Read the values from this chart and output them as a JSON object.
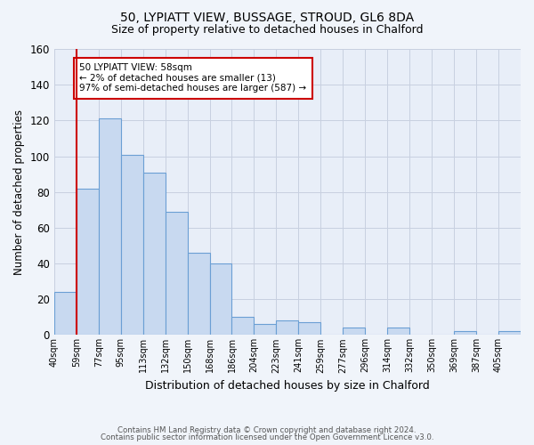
{
  "title1": "50, LYPIATT VIEW, BUSSAGE, STROUD, GL6 8DA",
  "title2": "Size of property relative to detached houses in Chalford",
  "xlabel": "Distribution of detached houses by size in Chalford",
  "ylabel": "Number of detached properties",
  "bin_labels": [
    "40sqm",
    "59sqm",
    "77sqm",
    "95sqm",
    "113sqm",
    "132sqm",
    "150sqm",
    "168sqm",
    "186sqm",
    "204sqm",
    "223sqm",
    "241sqm",
    "259sqm",
    "277sqm",
    "296sqm",
    "314sqm",
    "332sqm",
    "350sqm",
    "369sqm",
    "387sqm",
    "405sqm"
  ],
  "bar_values": [
    24,
    82,
    121,
    101,
    91,
    69,
    46,
    40,
    10,
    6,
    8,
    7,
    0,
    4,
    0,
    4,
    0,
    0,
    2,
    0,
    2
  ],
  "bar_color": "#c8d9f0",
  "bar_edge_color": "#6b9fd4",
  "vline_x": 1,
  "vline_color": "#cc0000",
  "annotation_text": "50 LYPIATT VIEW: 58sqm\n← 2% of detached houses are smaller (13)\n97% of semi-detached houses are larger (587) →",
  "annotation_box_color": "#ffffff",
  "annotation_box_edge": "#cc0000",
  "ylim": [
    0,
    160
  ],
  "yticks": [
    0,
    20,
    40,
    60,
    80,
    100,
    120,
    140,
    160
  ],
  "grid_color": "#c8d0e0",
  "background_color": "#e8eef8",
  "fig_background_color": "#f0f4fa",
  "footer1": "Contains HM Land Registry data © Crown copyright and database right 2024.",
  "footer2": "Contains public sector information licensed under the Open Government Licence v3.0."
}
